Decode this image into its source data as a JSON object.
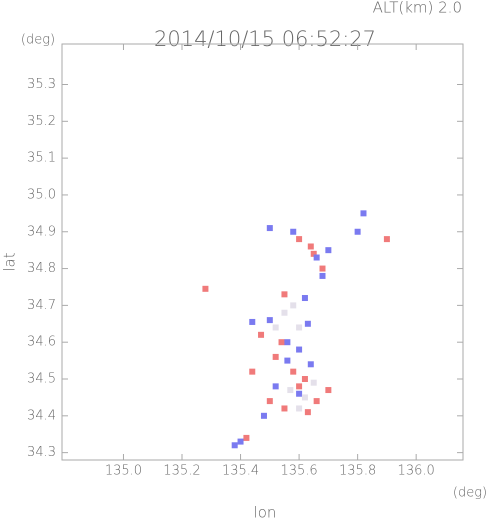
{
  "chart_data": {
    "type": "scatter",
    "title": "2014/10/15 06:52:27",
    "subtitle": "ALT(km) 2.0",
    "x_label": "lon",
    "y_label": "lat",
    "x_unit": "(deg)",
    "y_unit": "(deg)",
    "xlim": [
      134.79,
      136.16
    ],
    "ylim": [
      34.28,
      35.41
    ],
    "xticks": [
      {
        "value": 135,
        "label": "135.0"
      },
      135.2,
      135.4,
      135.6,
      135.8,
      {
        "value": 136,
        "label": "136.0"
      }
    ],
    "yticks": [
      34.3,
      34.4,
      34.5,
      34.6,
      34.7,
      34.8,
      34.9,
      {
        "value": 35,
        "label": "35.0"
      },
      35.1,
      35.2,
      35.3
    ],
    "series": [
      {
        "color": "#f07a7a",
        "x": [
          135.9,
          135.28,
          135.64,
          135.55,
          135.47,
          135.54,
          135.62,
          135.6,
          135.66,
          135.55,
          135.5,
          135.42,
          135.7,
          135.58,
          135.65,
          135.6,
          135.68,
          135.52,
          135.44,
          135.63
        ],
        "y": [
          34.88,
          34.745,
          34.86,
          34.73,
          34.62,
          34.6,
          34.5,
          34.48,
          34.44,
          34.42,
          34.44,
          34.34,
          34.47,
          34.52,
          34.84,
          34.88,
          34.8,
          34.56,
          34.52,
          34.41
        ]
      },
      {
        "color": "#7a7af0",
        "x": [
          135.82,
          135.8,
          135.56,
          135.6,
          135.5,
          135.44,
          135.52,
          135.48,
          135.4,
          135.62,
          135.66,
          135.7,
          135.58,
          135.5,
          135.68,
          135.63,
          135.56,
          135.64,
          135.6,
          135.38
        ],
        "y": [
          34.95,
          34.9,
          34.6,
          34.58,
          34.66,
          34.655,
          34.48,
          34.4,
          34.33,
          34.72,
          34.83,
          34.85,
          34.9,
          34.91,
          34.78,
          34.65,
          34.55,
          34.54,
          34.46,
          34.32
        ]
      },
      {
        "color": "#e4e0ea",
        "x": [
          135.55,
          135.6,
          135.58,
          135.52,
          135.62,
          135.6,
          135.65,
          135.57
        ],
        "y": [
          34.68,
          34.64,
          34.7,
          34.64,
          34.45,
          34.42,
          34.49,
          34.47
        ]
      }
    ]
  }
}
